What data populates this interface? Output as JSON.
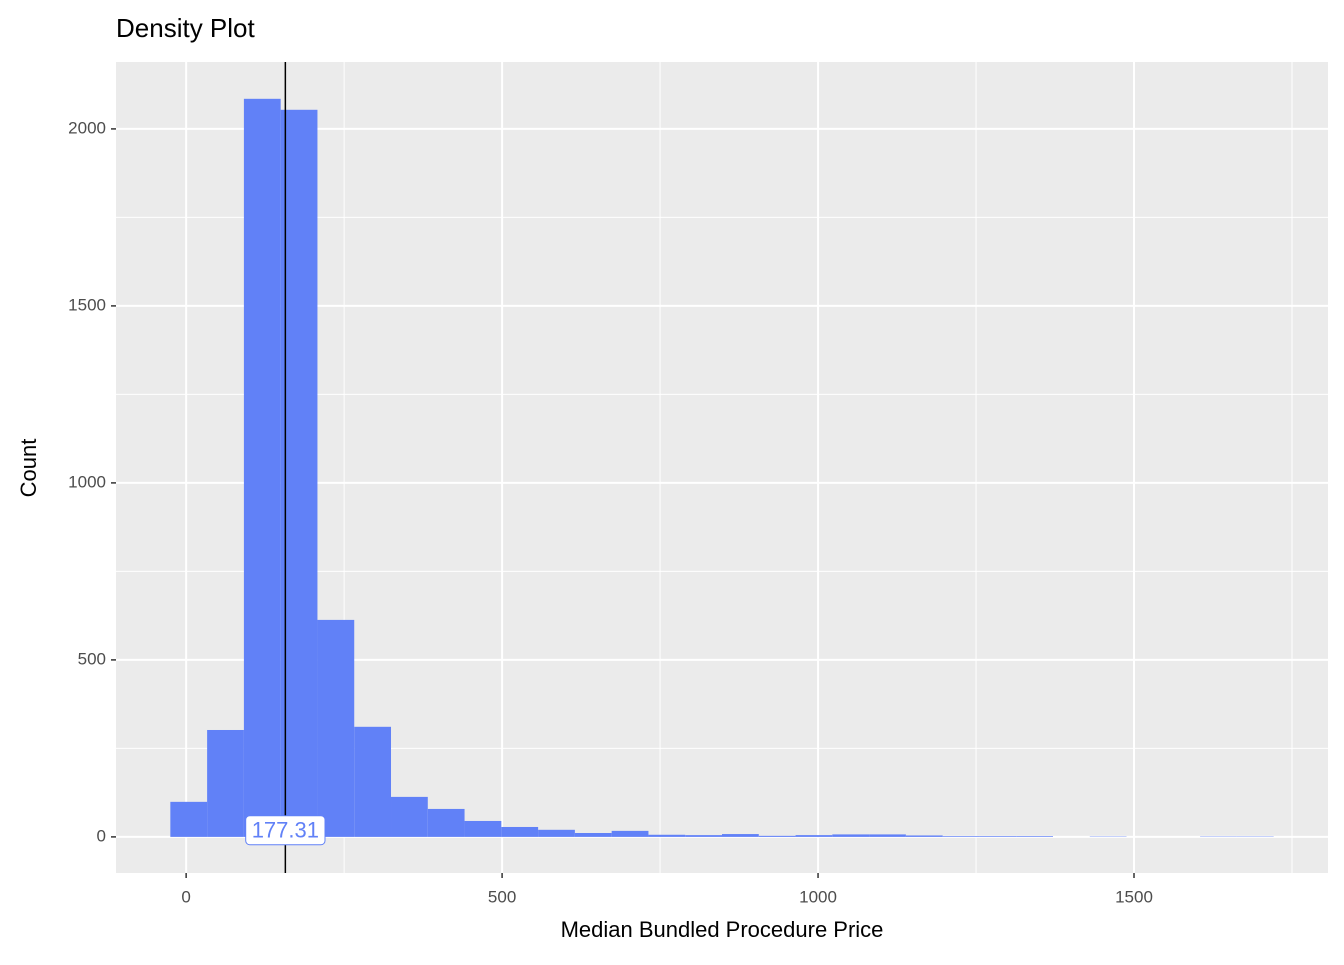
{
  "chart_data": {
    "type": "histogram",
    "title": "Density Plot",
    "x_label": "Median Bundled Procedure Price",
    "y_label": "Count",
    "bins": [
      -25,
      33.2,
      91.4,
      149.6,
      207.8,
      266,
      324.2,
      382.4,
      440.6,
      498.8,
      557,
      615.2,
      673.4,
      731.6,
      789.8,
      848,
      906.2,
      964.4,
      1022.6,
      1080.8,
      1139,
      1197.2,
      1255.4,
      1313.6,
      1371.8,
      1430,
      1488.2,
      1546.4,
      1604.6,
      1662.8,
      1721
    ],
    "values": [
      99,
      302,
      2085,
      2054,
      613,
      311,
      113,
      79,
      45,
      28,
      20,
      11,
      17,
      6,
      5,
      8,
      3,
      5,
      7,
      7,
      4,
      2,
      2,
      2,
      0,
      1,
      0,
      0,
      1,
      1
    ],
    "color": "#6181F7",
    "vline": 157,
    "annotation": "177.31",
    "xlim": [
      -111,
      1807
    ],
    "ylim": [
      -102,
      2189
    ],
    "xticks": [
      0,
      500,
      1000,
      1500
    ],
    "yticks": [
      0,
      500,
      1000,
      1500,
      2000
    ],
    "minor_xticks": [
      250,
      750,
      1250,
      1750
    ],
    "minor_yticks": [
      250,
      750,
      1250,
      1750
    ],
    "grid": true
  }
}
